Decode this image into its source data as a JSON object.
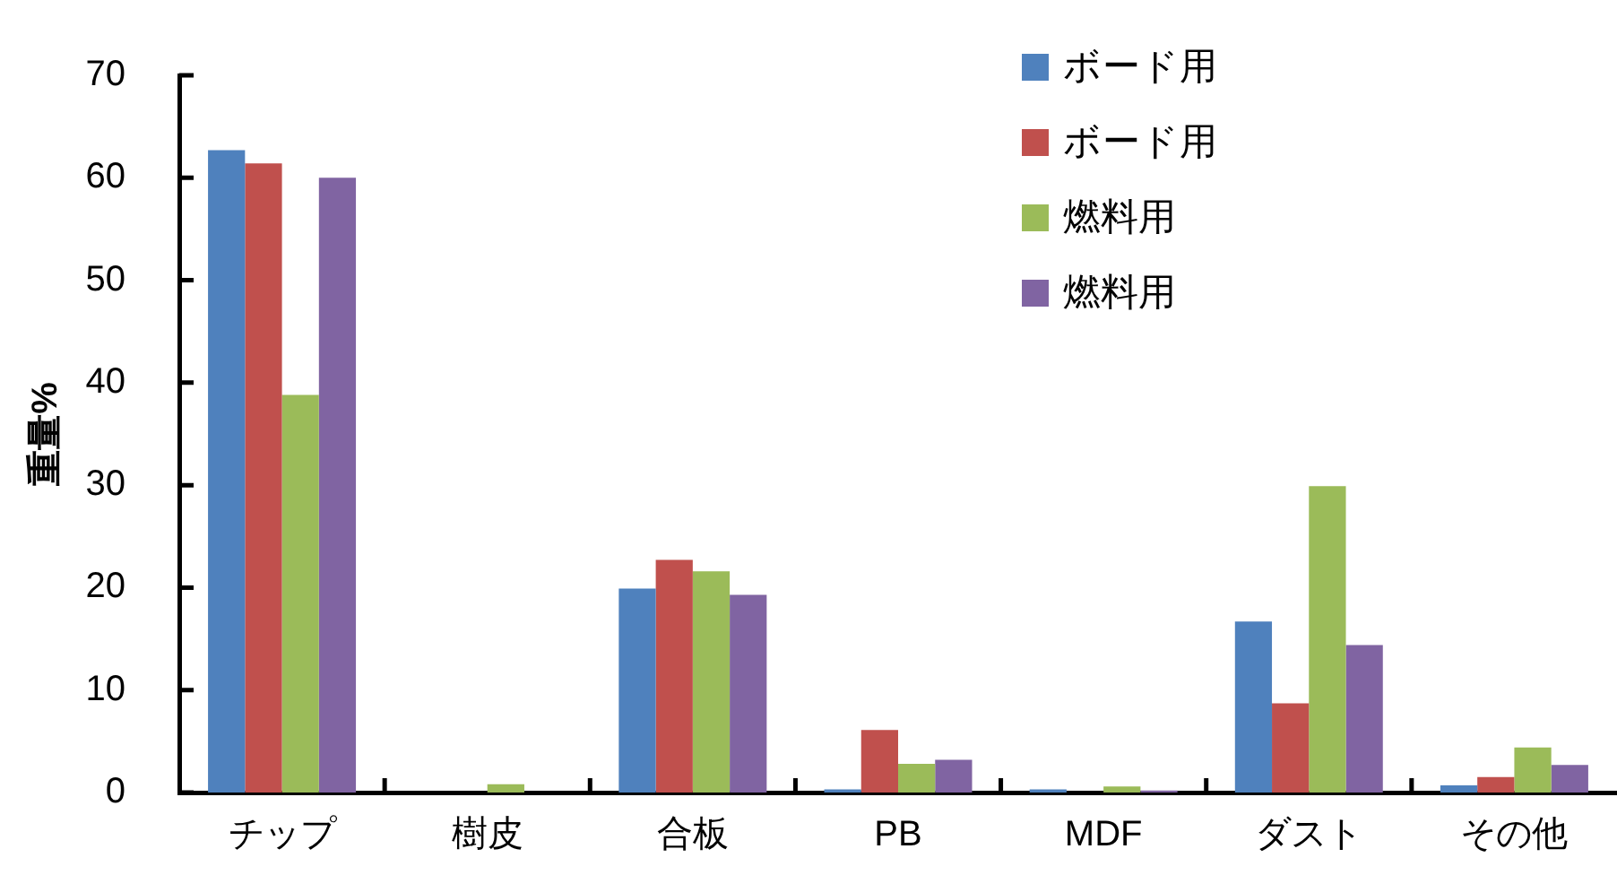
{
  "chart_data": {
    "type": "bar",
    "ylabel": "重量%",
    "categories": [
      "チップ",
      "樹皮",
      "合板",
      "PB",
      "MDF",
      "ダスト",
      "その他"
    ],
    "series": [
      {
        "name": "ボード用",
        "color": "#4f81bd",
        "values": [
          62.7,
          0,
          19.9,
          0.3,
          0.3,
          16.7,
          0.7
        ]
      },
      {
        "name": "ボード用",
        "color": "#c0504d",
        "values": [
          61.4,
          0,
          22.7,
          6.1,
          0,
          8.7,
          1.5
        ]
      },
      {
        "name": "燃料用",
        "color": "#9bbb59",
        "values": [
          38.8,
          0.8,
          21.6,
          2.8,
          0.6,
          29.9,
          4.4
        ]
      },
      {
        "name": "燃料用",
        "color": "#8064a2",
        "values": [
          60.0,
          0,
          19.3,
          3.2,
          0.2,
          14.4,
          2.7
        ]
      }
    ],
    "ylim": [
      0,
      70
    ],
    "yticks": [
      0,
      10,
      20,
      30,
      40,
      50,
      60,
      70
    ],
    "grid": false,
    "legend": "top right"
  }
}
